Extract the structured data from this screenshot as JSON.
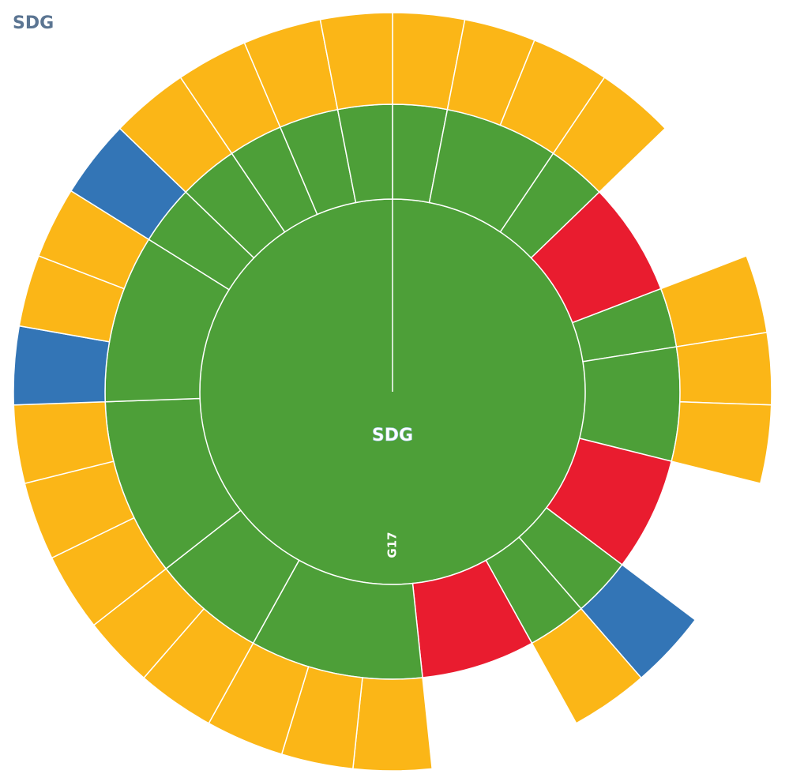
{
  "chart_data": {
    "type": "sunburst",
    "title": "SDG",
    "root": "SDG",
    "nodes": [
      {
        "name": "G17",
        "value": 360,
        "color": "#4d9f38",
        "children": [
          {
            "value": 11,
            "color": "#4d9f38",
            "children": [
              {
                "value": 11,
                "color": "#fbb617"
              }
            ]
          },
          {
            "value": 23,
            "color": "#4d9f38",
            "children": [
              {
                "value": 11,
                "color": "#fbb617"
              },
              {
                "value": 12,
                "color": "#fbb617"
              }
            ]
          },
          {
            "value": 12,
            "color": "#4d9f38",
            "children": [
              {
                "value": 12,
                "color": "#fbb617"
              }
            ]
          },
          {
            "value": 23,
            "color": "#e91c2f",
            "children": []
          },
          {
            "value": 12,
            "color": "#4d9f38",
            "children": [
              {
                "value": 12,
                "color": "#fbb617"
              }
            ]
          },
          {
            "value": 23,
            "color": "#4d9f38",
            "children": [
              {
                "value": 11,
                "color": "#fbb617"
              },
              {
                "value": 12,
                "color": "#fbb617"
              }
            ]
          },
          {
            "value": 23,
            "color": "#e91c2f",
            "children": []
          },
          {
            "value": 12,
            "color": "#4d9f38",
            "children": [
              {
                "value": 12,
                "color": "#3375b6"
              }
            ]
          },
          {
            "value": 12,
            "color": "#4d9f38",
            "children": [
              {
                "value": 12,
                "color": "#fbb617"
              }
            ]
          },
          {
            "value": 23,
            "color": "#e91c2f",
            "children": []
          },
          {
            "value": 35,
            "color": "#4d9f38",
            "children": [
              {
                "value": 12,
                "color": "#fbb617"
              },
              {
                "value": 11,
                "color": "#fbb617"
              },
              {
                "value": 12,
                "color": "#fbb617"
              }
            ]
          },
          {
            "value": 23,
            "color": "#4d9f38",
            "children": [
              {
                "value": 12,
                "color": "#fbb617"
              },
              {
                "value": 11,
                "color": "#fbb617"
              }
            ]
          },
          {
            "value": 36,
            "color": "#4d9f38",
            "children": [
              {
                "value": 12,
                "color": "#fbb617"
              },
              {
                "value": 12,
                "color": "#fbb617"
              },
              {
                "value": 12,
                "color": "#fbb617"
              }
            ]
          },
          {
            "value": 34,
            "color": "#4d9f38",
            "children": [
              {
                "value": 12,
                "color": "#3375b6"
              },
              {
                "value": 11,
                "color": "#fbb617"
              },
              {
                "value": 11,
                "color": "#fbb617"
              }
            ]
          },
          {
            "value": 12,
            "color": "#4d9f38",
            "children": [
              {
                "value": 12,
                "color": "#3375b6"
              }
            ]
          },
          {
            "value": 12,
            "color": "#4d9f38",
            "children": [
              {
                "value": 12,
                "color": "#fbb617"
              }
            ]
          },
          {
            "value": 11,
            "color": "#4d9f38",
            "children": [
              {
                "value": 11,
                "color": "#fbb617"
              }
            ]
          },
          {
            "value": 12,
            "color": "#4d9f38",
            "children": [
              {
                "value": 12,
                "color": "#fbb617"
              }
            ]
          },
          {
            "value": 11,
            "color": "#4d9f38",
            "children": [
              {
                "value": 11,
                "color": "#fbb617"
              }
            ]
          }
        ]
      }
    ]
  }
}
